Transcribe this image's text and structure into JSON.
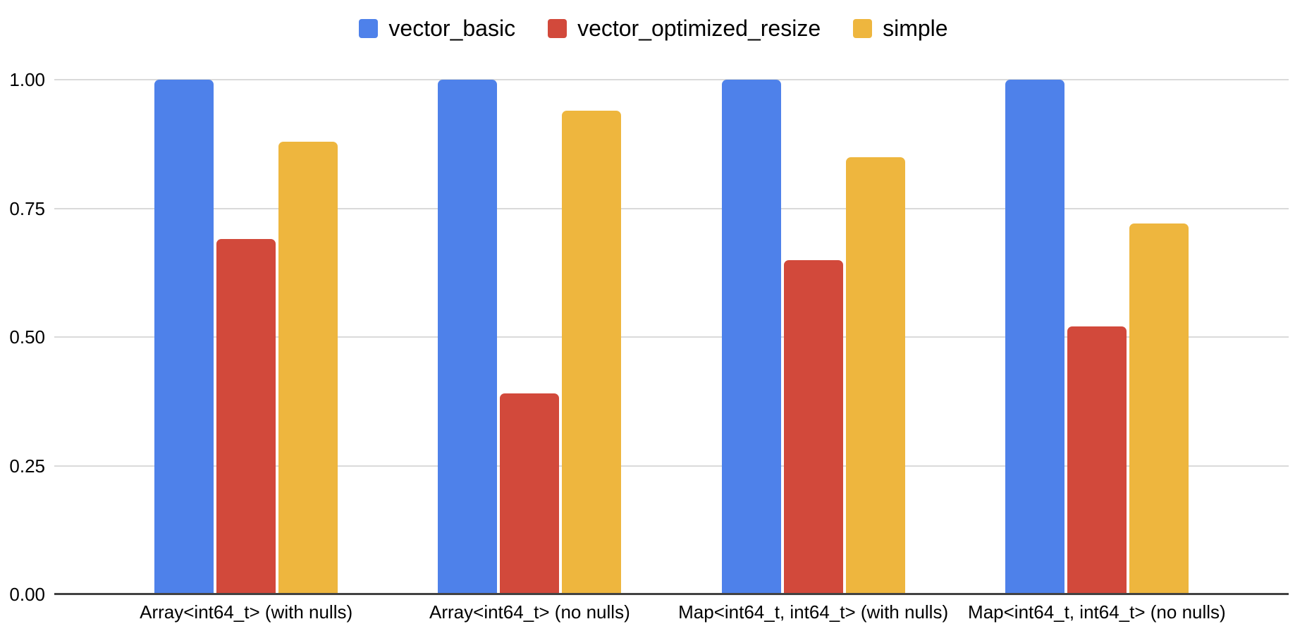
{
  "chart_data": {
    "type": "bar",
    "title": "",
    "categories": [
      "Array<int64_t> (with nulls)",
      "Array<int64_t> (no nulls)",
      "Map<int64_t, int64_t> (with nulls)",
      "Map<int64_t, int64_t> (no nulls)"
    ],
    "series": [
      {
        "name": "vector_basic",
        "color": "#4E81EA",
        "values": [
          1.0,
          1.0,
          1.0,
          1.0
        ]
      },
      {
        "name": "vector_optimized_resize",
        "color": "#D2493B",
        "values": [
          0.69,
          0.39,
          0.65,
          0.52
        ]
      },
      {
        "name": "simple",
        "color": "#EEB63E",
        "values": [
          0.88,
          0.94,
          0.85,
          0.72
        ]
      }
    ],
    "y_axis": {
      "tick_labels": [
        "0.00",
        "0.25",
        "0.50",
        "0.75",
        "1.00"
      ],
      "tick_values": [
        0,
        0.25,
        0.5,
        0.75,
        1
      ],
      "min": 0,
      "max": 1
    },
    "legend_position": "top-center",
    "grid": true,
    "colors": {
      "gridline": "#DADADA",
      "axis_line": "#424242",
      "text": "#000000",
      "background": "#FFFFFF"
    }
  }
}
